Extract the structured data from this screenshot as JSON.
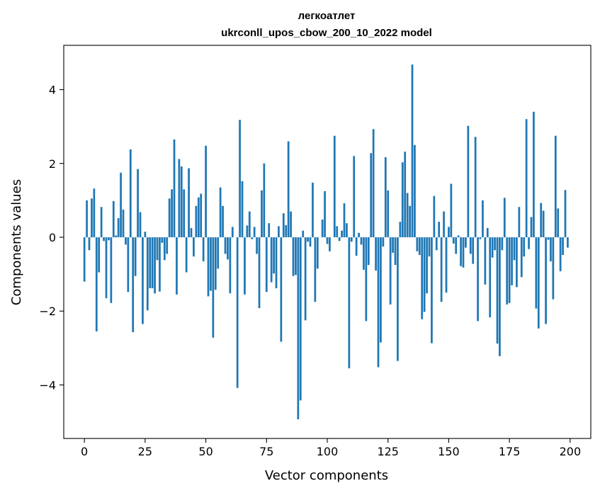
{
  "chart_data": {
    "type": "bar",
    "title": "легкоатлет",
    "subtitle": "ukrconll_upos_cbow_200_10_2022 model",
    "xlabel": "Vector components",
    "ylabel": "Components values",
    "xlim": [
      -8.5,
      208.5
    ],
    "ylim": [
      -5.45,
      5.2
    ],
    "xticks": [
      0,
      25,
      50,
      75,
      100,
      125,
      150,
      175,
      200
    ],
    "xtick_labels": [
      "0",
      "25",
      "50",
      "75",
      "100",
      "125",
      "150",
      "175",
      "200"
    ],
    "yticks": [
      -4,
      -2,
      0,
      2,
      4
    ],
    "ytick_labels": [
      "−4",
      "−2",
      "0",
      "2",
      "4"
    ],
    "bar_color": "#1f77b4",
    "grid": false,
    "values": [
      -1.2,
      1.0,
      -0.35,
      1.05,
      1.32,
      -2.55,
      -0.95,
      0.82,
      -0.1,
      -1.65,
      -0.08,
      -1.78,
      0.98,
      0.05,
      0.52,
      1.75,
      0.75,
      -0.2,
      -1.48,
      2.38,
      -2.57,
      -1.05,
      1.85,
      0.68,
      -2.35,
      0.15,
      -1.98,
      -1.38,
      -1.38,
      -1.52,
      -0.62,
      -1.47,
      -0.15,
      -0.62,
      -0.45,
      1.05,
      1.3,
      2.65,
      -1.55,
      2.12,
      1.92,
      1.3,
      -0.95,
      1.87,
      0.25,
      -0.52,
      0.85,
      1.08,
      1.18,
      -0.65,
      2.48,
      -1.6,
      -1.45,
      -2.72,
      -1.42,
      -0.85,
      1.35,
      0.85,
      -0.45,
      -0.6,
      -1.52,
      0.28,
      0.0,
      -4.08,
      3.18,
      1.52,
      -1.55,
      0.32,
      0.7,
      -0.05,
      0.28,
      -0.45,
      -1.92,
      1.27,
      2.0,
      -1.48,
      0.38,
      -1.22,
      -0.98,
      -1.38,
      0.3,
      -2.83,
      0.65,
      0.33,
      2.6,
      0.7,
      -1.05,
      -1.02,
      -4.93,
      -4.42,
      0.18,
      -2.25,
      -0.12,
      -0.25,
      1.48,
      -1.75,
      -0.85,
      0.0,
      0.48,
      1.25,
      -0.18,
      -0.38,
      0.0,
      2.75,
      0.3,
      -0.1,
      0.18,
      0.92,
      0.38,
      -3.55,
      -0.12,
      2.2,
      -0.5,
      0.12,
      -0.2,
      -0.88,
      -2.27,
      -0.75,
      2.28,
      2.93,
      -0.9,
      -3.52,
      -2.85,
      -0.25,
      2.17,
      1.27,
      -1.82,
      -0.42,
      -0.75,
      -3.35,
      0.42,
      2.03,
      2.32,
      1.2,
      0.85,
      4.68,
      2.5,
      -0.38,
      -0.48,
      -2.22,
      -2.02,
      -1.52,
      -0.52,
      -2.87,
      1.12,
      -0.35,
      0.42,
      -1.75,
      0.7,
      -1.5,
      0.28,
      1.45,
      -0.17,
      -0.45,
      0.05,
      -0.78,
      -0.82,
      -0.28,
      3.02,
      -0.45,
      -0.72,
      2.72,
      -2.27,
      -0.05,
      1.0,
      -1.28,
      0.25,
      -2.17,
      -0.55,
      -0.35,
      -2.88,
      -3.22,
      -0.35,
      1.07,
      -1.82,
      -1.78,
      -1.3,
      -0.62,
      -1.35,
      0.82,
      -1.08,
      -0.52,
      3.2,
      -0.32,
      0.55,
      3.4,
      -1.93,
      -2.47,
      0.93,
      0.72,
      -2.35,
      -0.07,
      -0.65,
      -1.68,
      2.75,
      0.78,
      -0.92,
      -0.48,
      1.28,
      -0.28
    ]
  }
}
